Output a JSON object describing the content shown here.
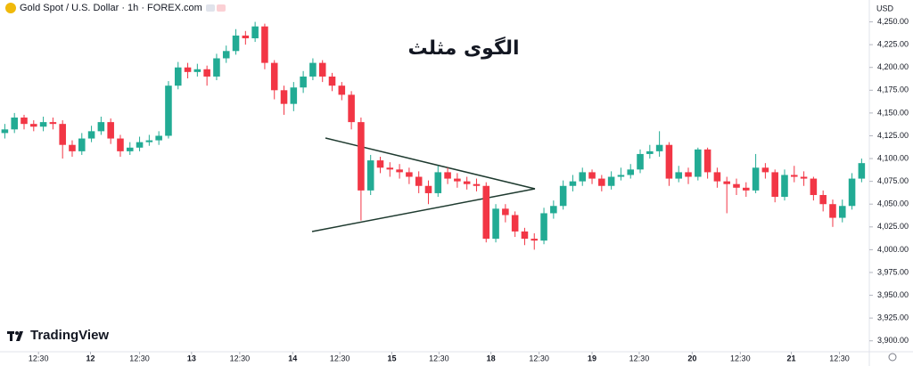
{
  "header": {
    "title": "Gold Spot / U.S. Dollar · 1h · FOREX.com"
  },
  "branding": "TradingView",
  "chart_data": {
    "type": "candlestick",
    "annotation": "الگوی مثلث",
    "y_axis_unit": "USD",
    "up_color": "#22ab94",
    "down_color": "#f23645",
    "x": [
      0,
      1,
      2,
      3,
      4,
      5,
      6,
      7,
      8,
      9,
      10,
      11,
      12,
      13,
      14,
      15,
      16,
      17,
      18,
      19,
      20,
      21,
      22,
      23,
      24,
      25,
      26,
      27,
      28,
      29,
      30,
      31,
      32,
      33,
      34,
      35,
      36,
      37,
      38,
      39,
      40,
      41,
      42,
      43,
      44,
      45,
      46,
      47,
      48,
      49,
      50,
      51,
      52,
      53,
      54,
      55,
      56,
      57,
      58,
      59,
      60,
      61,
      62,
      63,
      64,
      65,
      66,
      67,
      68,
      69,
      70,
      71,
      72,
      73,
      74,
      75,
      76,
      77,
      78,
      79,
      80,
      81,
      82,
      83,
      84,
      85,
      86,
      87,
      88,
      89
    ],
    "open": [
      4128,
      4132,
      4145,
      4138,
      4135,
      4140,
      4138,
      4115,
      4108,
      4122,
      4130,
      4140,
      4122,
      4108,
      4112,
      4118,
      4120,
      4125,
      4180,
      4200,
      4195,
      4198,
      4190,
      4210,
      4218,
      4235,
      4232,
      4245,
      4205,
      4175,
      4160,
      4178,
      4190,
      4205,
      4190,
      4180,
      4170,
      4140,
      4065,
      4098,
      4090,
      4088,
      4085,
      4080,
      4070,
      4062,
      4085,
      4078,
      4075,
      4072,
      4070,
      4012,
      4045,
      4038,
      4020,
      4012,
      4010,
      4040,
      4048,
      4070,
      4075,
      4085,
      4078,
      4070,
      4080,
      4082,
      4088,
      4105,
      4108,
      4115,
      4078,
      4085,
      4080,
      4110,
      4085,
      4075,
      4072,
      4068,
      4065,
      4090,
      4085,
      4058,
      4082,
      4080,
      4078,
      4060,
      4050,
      4035,
      4048,
      4078
    ],
    "high": [
      4138,
      4150,
      4148,
      4142,
      4146,
      4145,
      4142,
      4120,
      4128,
      4136,
      4146,
      4144,
      4126,
      4118,
      4124,
      4126,
      4130,
      4185,
      4206,
      4205,
      4204,
      4202,
      4215,
      4224,
      4242,
      4240,
      4250,
      4248,
      4208,
      4180,
      4184,
      4196,
      4210,
      4208,
      4194,
      4184,
      4174,
      4145,
      4104,
      4102,
      4096,
      4094,
      4090,
      4086,
      4076,
      4092,
      4090,
      4084,
      4080,
      4078,
      4074,
      4050,
      4050,
      4042,
      4024,
      4018,
      4046,
      4054,
      4076,
      4082,
      4090,
      4088,
      4082,
      4086,
      4090,
      4094,
      4110,
      4115,
      4130,
      4118,
      4092,
      4090,
      4112,
      4112,
      4090,
      4080,
      4078,
      4074,
      4105,
      4095,
      4088,
      4088,
      4092,
      4086,
      4080,
      4065,
      4055,
      4055,
      4084,
      4100
    ],
    "low": [
      4122,
      4128,
      4132,
      4130,
      4130,
      4132,
      4100,
      4102,
      4104,
      4118,
      4126,
      4116,
      4102,
      4104,
      4108,
      4114,
      4115,
      4122,
      4176,
      4188,
      4190,
      4180,
      4186,
      4205,
      4214,
      4225,
      4228,
      4198,
      4165,
      4148,
      4152,
      4172,
      4186,
      4184,
      4174,
      4164,
      4132,
      4032,
      4060,
      4084,
      4080,
      4078,
      4072,
      4062,
      4050,
      4058,
      4072,
      4068,
      4066,
      4064,
      4008,
      4008,
      4030,
      4014,
      4005,
      4000,
      4006,
      4034,
      4044,
      4064,
      4070,
      4072,
      4064,
      4066,
      4076,
      4078,
      4084,
      4100,
      4102,
      4070,
      4074,
      4072,
      4076,
      4078,
      4068,
      4040,
      4060,
      4058,
      4062,
      4078,
      4052,
      4054,
      4074,
      4070,
      4054,
      4042,
      4025,
      4030,
      4044,
      4074
    ],
    "close": [
      4132,
      4145,
      4138,
      4135,
      4140,
      4138,
      4115,
      4108,
      4122,
      4130,
      4140,
      4122,
      4108,
      4112,
      4118,
      4120,
      4125,
      4180,
      4200,
      4195,
      4198,
      4190,
      4210,
      4218,
      4235,
      4232,
      4245,
      4205,
      4175,
      4160,
      4178,
      4190,
      4205,
      4190,
      4180,
      4170,
      4140,
      4065,
      4098,
      4090,
      4088,
      4085,
      4080,
      4070,
      4062,
      4085,
      4078,
      4075,
      4072,
      4070,
      4012,
      4045,
      4038,
      4020,
      4012,
      4010,
      4040,
      4048,
      4070,
      4075,
      4085,
      4078,
      4070,
      4080,
      4082,
      4088,
      4105,
      4108,
      4115,
      4078,
      4085,
      4080,
      4110,
      4085,
      4075,
      4072,
      4068,
      4065,
      4090,
      4085,
      4058,
      4082,
      4080,
      4078,
      4060,
      4050,
      4035,
      4048,
      4078,
      4095
    ],
    "xlim": [
      -0.5,
      89.8
    ],
    "xticks": [
      {
        "value": 3.5,
        "label": "12:30"
      },
      {
        "value": 8.9,
        "label": "12"
      },
      {
        "value": 14.0,
        "label": "12:30"
      },
      {
        "value": 19.4,
        "label": "13"
      },
      {
        "value": 24.4,
        "label": "12:30"
      },
      {
        "value": 29.9,
        "label": "14"
      },
      {
        "value": 34.8,
        "label": "12:30"
      },
      {
        "value": 40.2,
        "label": "15"
      },
      {
        "value": 45.1,
        "label": "12:30"
      },
      {
        "value": 50.5,
        "label": "18"
      },
      {
        "value": 55.5,
        "label": "12:30"
      },
      {
        "value": 61.0,
        "label": "19"
      },
      {
        "value": 65.9,
        "label": "12:30"
      },
      {
        "value": 71.4,
        "label": "20"
      },
      {
        "value": 76.4,
        "label": "12:30"
      },
      {
        "value": 81.7,
        "label": "21"
      },
      {
        "value": 86.7,
        "label": "12:30"
      }
    ],
    "ylim": [
      3888,
      4274
    ],
    "yticks": [
      {
        "value": 3900,
        "label": "3,900.00"
      },
      {
        "value": 3925,
        "label": "3,925.00"
      },
      {
        "value": 3950,
        "label": "3,950.00"
      },
      {
        "value": 3975,
        "label": "3,975.00"
      },
      {
        "value": 4000,
        "label": "4,000.00"
      },
      {
        "value": 4025,
        "label": "4,025.00"
      },
      {
        "value": 4050,
        "label": "4,050.00"
      },
      {
        "value": 4075,
        "label": "4,075.00"
      },
      {
        "value": 4100,
        "label": "4,100.00"
      },
      {
        "value": 4125,
        "label": "4,125.00"
      },
      {
        "value": 4150,
        "label": "4,150.00"
      },
      {
        "value": 4175,
        "label": "4,175.00"
      },
      {
        "value": 4200,
        "label": "4,200.00"
      },
      {
        "value": 4225,
        "label": "4,225.00"
      },
      {
        "value": 4250,
        "label": "4,250.00"
      }
    ]
  }
}
